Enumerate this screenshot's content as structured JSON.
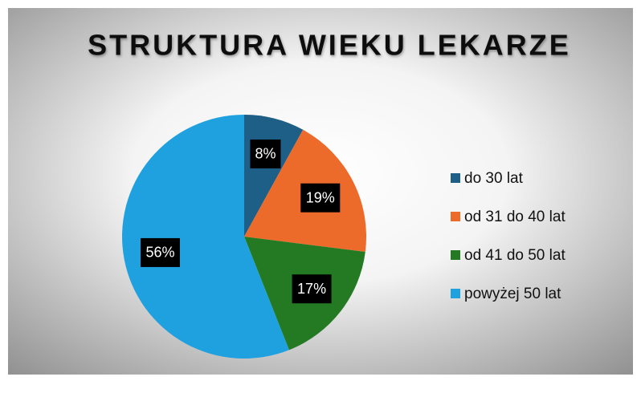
{
  "chart_data": {
    "type": "pie",
    "title": "STRUKTURA WIEKU LEKARZE",
    "categories": [
      "do 30 lat",
      "od 31 do 40 lat",
      "od 41 do 50 lat",
      "powyżej 50 lat"
    ],
    "values": [
      8,
      19,
      17,
      56
    ],
    "value_labels": [
      "8%",
      "19%",
      "17%",
      "56%"
    ],
    "colors": [
      "#1d5f87",
      "#ec6a2a",
      "#237a23",
      "#1fa1df"
    ],
    "legend": "right"
  }
}
